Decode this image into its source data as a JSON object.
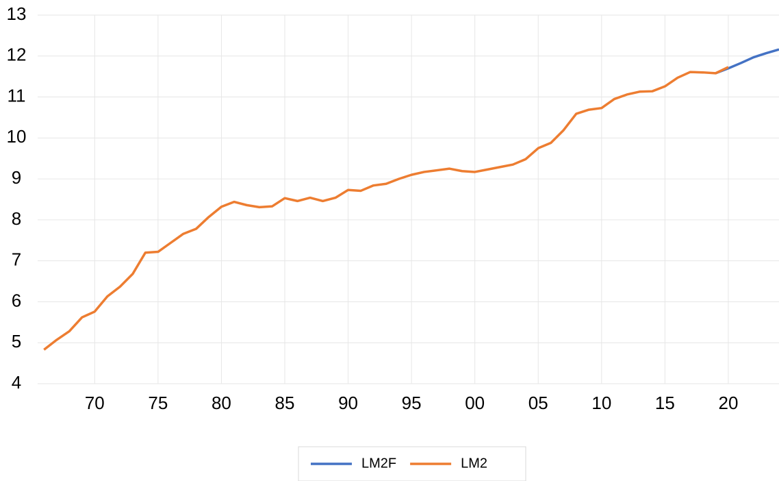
{
  "chart_data": {
    "type": "line",
    "x": [
      1966,
      1967,
      1968,
      1969,
      1970,
      1971,
      1972,
      1973,
      1974,
      1975,
      1976,
      1977,
      1978,
      1979,
      1980,
      1981,
      1982,
      1983,
      1984,
      1985,
      1986,
      1987,
      1988,
      1989,
      1990,
      1991,
      1992,
      1993,
      1994,
      1995,
      1996,
      1997,
      1998,
      1999,
      2000,
      2001,
      2002,
      2003,
      2004,
      2005,
      2006,
      2007,
      2008,
      2009,
      2010,
      2011,
      2012,
      2013,
      2014,
      2015,
      2016,
      2017,
      2018,
      2019,
      2020,
      2021,
      2022,
      2023,
      2024
    ],
    "series": [
      {
        "name": "LM2F",
        "color": "#4472c4",
        "values": [
          null,
          null,
          null,
          null,
          null,
          null,
          null,
          null,
          null,
          null,
          null,
          null,
          null,
          null,
          null,
          null,
          null,
          null,
          null,
          null,
          null,
          null,
          null,
          null,
          null,
          null,
          null,
          null,
          null,
          null,
          null,
          null,
          null,
          null,
          null,
          null,
          null,
          null,
          null,
          null,
          null,
          null,
          null,
          null,
          null,
          null,
          null,
          null,
          null,
          null,
          null,
          null,
          null,
          11.58,
          11.7,
          11.83,
          11.97,
          12.07,
          12.16
        ]
      },
      {
        "name": "LM2",
        "color": "#ed7d31",
        "values": [
          4.83,
          5.07,
          5.28,
          5.62,
          5.76,
          6.13,
          6.37,
          6.68,
          7.2,
          7.22,
          7.44,
          7.66,
          7.78,
          8.07,
          8.32,
          8.44,
          8.36,
          8.31,
          8.33,
          8.53,
          8.46,
          8.54,
          8.46,
          8.54,
          8.73,
          8.71,
          8.84,
          8.88,
          9.0,
          9.1,
          9.17,
          9.21,
          9.25,
          9.19,
          9.17,
          9.23,
          9.29,
          9.35,
          9.48,
          9.75,
          9.88,
          10.19,
          10.59,
          10.69,
          10.73,
          10.95,
          11.06,
          11.13,
          11.14,
          11.26,
          11.47,
          11.61,
          11.6,
          11.58,
          11.73,
          null,
          null,
          null,
          null
        ]
      }
    ],
    "xlim": [
      1965.5,
      2024
    ],
    "xticks": [
      {
        "value": 1970,
        "label": "70"
      },
      {
        "value": 1975,
        "label": "75"
      },
      {
        "value": 1980,
        "label": "80"
      },
      {
        "value": 1985,
        "label": "85"
      },
      {
        "value": 1990,
        "label": "90"
      },
      {
        "value": 1995,
        "label": "95"
      },
      {
        "value": 2000,
        "label": "00"
      },
      {
        "value": 2005,
        "label": "05"
      },
      {
        "value": 2010,
        "label": "10"
      },
      {
        "value": 2015,
        "label": "15"
      },
      {
        "value": 2020,
        "label": "20"
      }
    ],
    "ylim": [
      4,
      13
    ],
    "yticks": [
      4,
      5,
      6,
      7,
      8,
      9,
      10,
      11,
      12,
      13
    ],
    "grid": true,
    "legend": "bottom"
  }
}
